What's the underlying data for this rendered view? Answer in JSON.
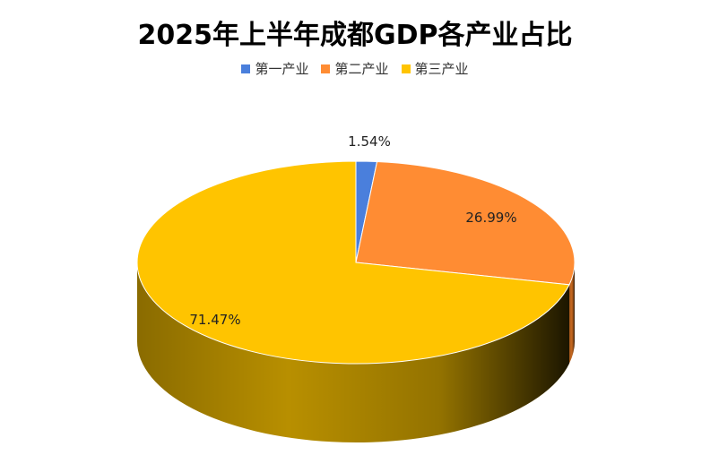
{
  "chart_data": {
    "type": "pie",
    "title": "2025年上半年成都GDP各产业占比",
    "legend_position": "top",
    "categories": [
      "第一产业",
      "第二产业",
      "第三产业"
    ],
    "values": [
      1.54,
      26.99,
      71.47
    ],
    "data_labels": [
      "1.54%",
      "26.99%",
      "71.47%"
    ],
    "colors": [
      "#4a7fdc",
      "#ff8c33",
      "#ffc400"
    ],
    "side_colors": [
      "#3a64ad",
      "#c96a20",
      "#b88f00"
    ],
    "three_d": true
  }
}
